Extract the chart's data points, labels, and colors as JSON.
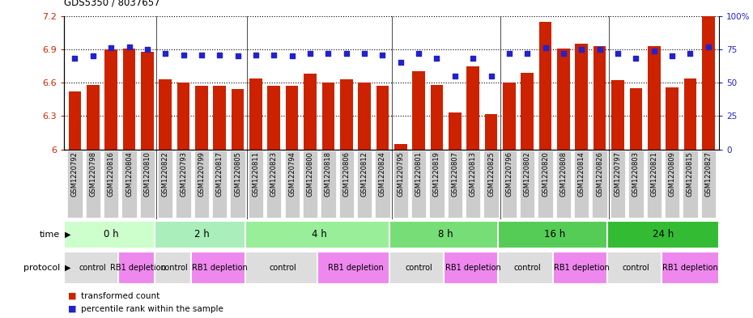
{
  "title": "GDS5350 / 8037657",
  "samples": [
    "GSM1220792",
    "GSM1220798",
    "GSM1220816",
    "GSM1220804",
    "GSM1220810",
    "GSM1220822",
    "GSM1220793",
    "GSM1220799",
    "GSM1220817",
    "GSM1220805",
    "GSM1220811",
    "GSM1220823",
    "GSM1220794",
    "GSM1220800",
    "GSM1220818",
    "GSM1220806",
    "GSM1220812",
    "GSM1220824",
    "GSM1220795",
    "GSM1220801",
    "GSM1220819",
    "GSM1220807",
    "GSM1220813",
    "GSM1220825",
    "GSM1220796",
    "GSM1220802",
    "GSM1220820",
    "GSM1220808",
    "GSM1220814",
    "GSM1220826",
    "GSM1220797",
    "GSM1220803",
    "GSM1220821",
    "GSM1220809",
    "GSM1220815",
    "GSM1220827"
  ],
  "bar_values": [
    6.52,
    6.58,
    6.9,
    6.91,
    6.88,
    6.63,
    6.6,
    6.57,
    6.57,
    6.54,
    6.64,
    6.57,
    6.57,
    6.68,
    6.6,
    6.63,
    6.6,
    6.57,
    6.05,
    6.7,
    6.58,
    6.33,
    6.75,
    6.32,
    6.6,
    6.69,
    7.15,
    6.91,
    6.95,
    6.93,
    6.62,
    6.55,
    6.93,
    6.56,
    6.64,
    7.2
  ],
  "percentile_values": [
    68,
    70,
    76,
    77,
    75,
    72,
    71,
    71,
    71,
    70,
    71,
    71,
    70,
    72,
    72,
    72,
    72,
    71,
    65,
    72,
    68,
    55,
    68,
    55,
    72,
    72,
    76,
    72,
    75,
    75,
    72,
    68,
    74,
    70,
    72,
    77
  ],
  "ymin": 6.0,
  "ymax": 7.2,
  "yticks": [
    6.0,
    6.3,
    6.6,
    6.9,
    7.2
  ],
  "ytick_labels": [
    "6",
    "6.3",
    "6.6",
    "6.9",
    "7.2"
  ],
  "bar_color": "#cc2200",
  "percentile_color": "#2222cc",
  "time_groups": [
    {
      "label": "0 h",
      "start": 0,
      "end": 5
    },
    {
      "label": "2 h",
      "start": 5,
      "end": 10
    },
    {
      "label": "4 h",
      "start": 10,
      "end": 18
    },
    {
      "label": "8 h",
      "start": 18,
      "end": 24
    },
    {
      "label": "16 h",
      "start": 24,
      "end": 30
    },
    {
      "label": "24 h",
      "start": 30,
      "end": 36
    }
  ],
  "protocol_groups": [
    {
      "label": "control",
      "start": 0,
      "end": 3,
      "color": "#dddddd"
    },
    {
      "label": "RB1 depletion",
      "start": 3,
      "end": 5,
      "color": "#ee88ee"
    },
    {
      "label": "control",
      "start": 5,
      "end": 7,
      "color": "#dddddd"
    },
    {
      "label": "RB1 depletion",
      "start": 7,
      "end": 10,
      "color": "#ee88ee"
    },
    {
      "label": "control",
      "start": 10,
      "end": 14,
      "color": "#dddddd"
    },
    {
      "label": "RB1 depletion",
      "start": 14,
      "end": 18,
      "color": "#ee88ee"
    },
    {
      "label": "control",
      "start": 18,
      "end": 21,
      "color": "#dddddd"
    },
    {
      "label": "RB1 depletion",
      "start": 21,
      "end": 24,
      "color": "#ee88ee"
    },
    {
      "label": "control",
      "start": 24,
      "end": 27,
      "color": "#dddddd"
    },
    {
      "label": "RB1 depletion",
      "start": 27,
      "end": 30,
      "color": "#ee88ee"
    },
    {
      "label": "control",
      "start": 30,
      "end": 33,
      "color": "#dddddd"
    },
    {
      "label": "RB1 depletion",
      "start": 33,
      "end": 36,
      "color": "#ee88ee"
    }
  ],
  "time_bg_colors": [
    "#ccffcc",
    "#99ee99",
    "#88dd88",
    "#77cc77",
    "#55bb55",
    "#33aa33"
  ],
  "label_bg_color": "#cccccc",
  "legend_red_label": "transformed count",
  "legend_blue_label": "percentile rank within the sample"
}
